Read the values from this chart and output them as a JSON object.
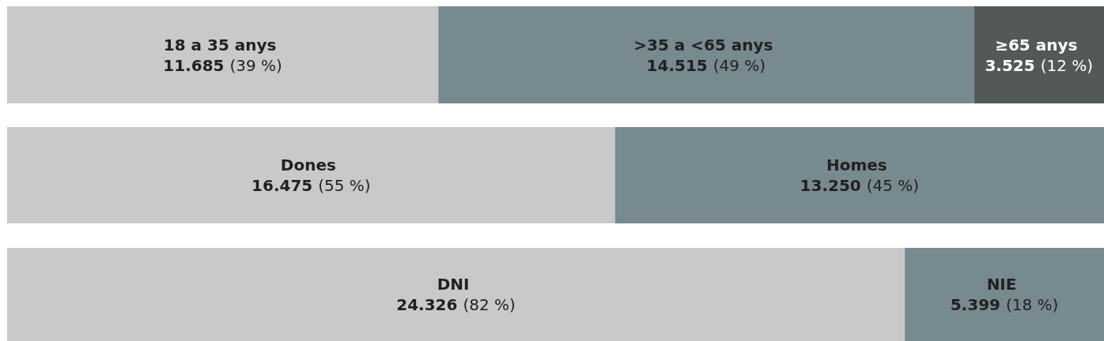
{
  "chart_data": [
    {
      "type": "bar",
      "orientation": "horizontal",
      "stacked": true,
      "categories": [
        null
      ],
      "series": [
        {
          "name": "18 a 35 anys",
          "color": "#c8c9cb",
          "values": [
            11685
          ],
          "value_labels": [
            "11.685 (39 %)"
          ]
        },
        {
          "name": ">35 a <65 anys",
          "color": "#778a90",
          "values": [
            14515
          ],
          "value_labels": [
            "14.515 (49 %)"
          ]
        },
        {
          "name": "≥65 anys",
          "color": "#535858",
          "values": [
            3525
          ],
          "value_labels": [
            "3.525 (12 %)"
          ]
        }
      ]
    },
    {
      "type": "bar",
      "orientation": "horizontal",
      "stacked": true,
      "categories": [
        null
      ],
      "series": [
        {
          "name": "Dones",
          "color": "#c8c9cb",
          "values": [
            16475
          ],
          "value_labels": [
            "16.475 (55 %)"
          ]
        },
        {
          "name": "Homes",
          "color": "#778a90",
          "values": [
            13250
          ],
          "value_labels": [
            "13.250 (45 %)"
          ]
        }
      ]
    },
    {
      "type": "bar",
      "orientation": "horizontal",
      "stacked": true,
      "categories": [
        null
      ],
      "series": [
        {
          "name": "DNI",
          "color": "#c8c9cb",
          "values": [
            24326
          ],
          "value_labels": [
            "24.326 (82 %)"
          ]
        },
        {
          "name": "NIE",
          "color": "#778a90",
          "values": [
            5399
          ],
          "value_labels": [
            "5.399 (18 %)"
          ]
        }
      ]
    }
  ]
}
